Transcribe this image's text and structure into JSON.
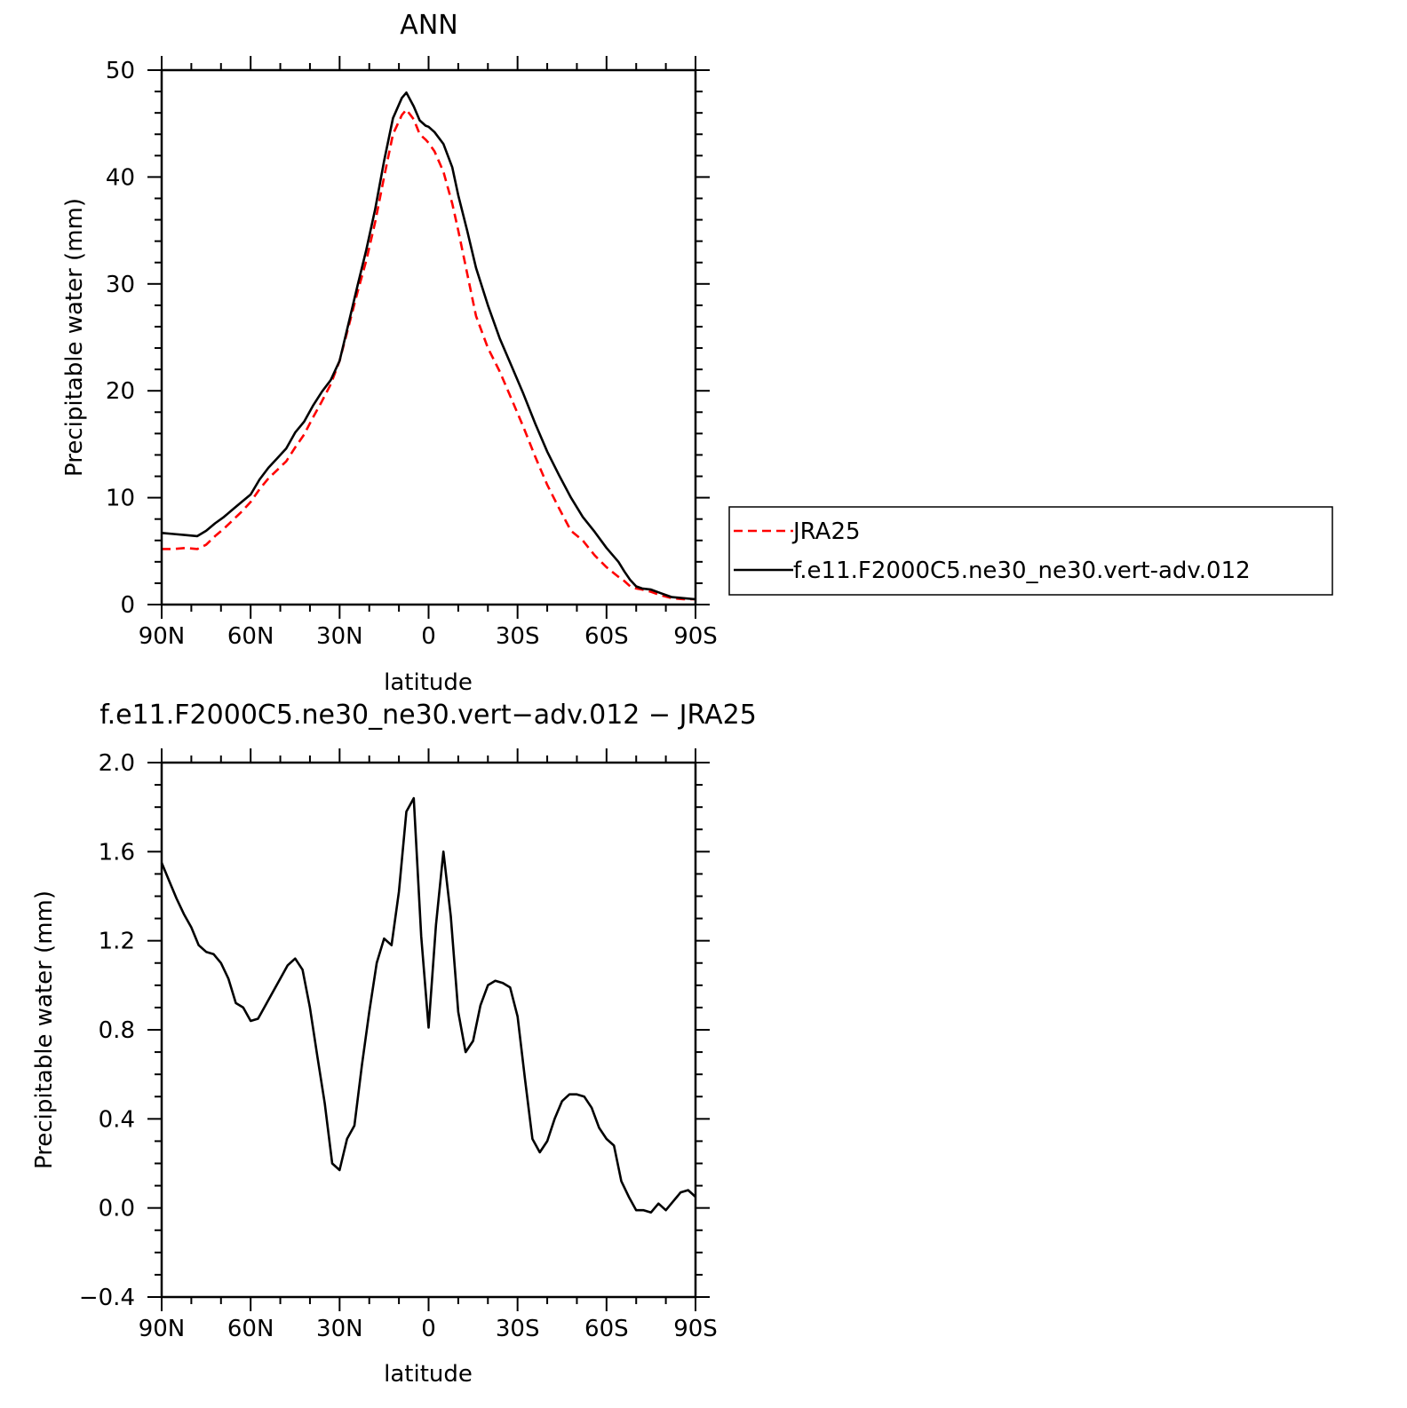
{
  "chart_data": [
    {
      "type": "line",
      "title": "ANN",
      "xlabel": "latitude",
      "ylabel": "Precipitable water (mm)",
      "xlim": [
        90,
        -90
      ],
      "ylim": [
        0,
        50
      ],
      "x_ticks": [
        90,
        60,
        30,
        0,
        -30,
        -60,
        -90
      ],
      "x_tick_labels": [
        "90N",
        "60N",
        "30N",
        "0",
        "30S",
        "60S",
        "90S"
      ],
      "y_ticks": [
        0,
        10,
        20,
        30,
        40,
        50
      ],
      "y_tick_labels": [
        "0",
        "10",
        "20",
        "30",
        "40",
        "50"
      ],
      "legend_position": "right",
      "series": [
        {
          "name": "JRA25",
          "color": "#ff0000",
          "dash": "dashed",
          "x": [
            90,
            86,
            82,
            78,
            75,
            72,
            69,
            66,
            63,
            60,
            57,
            54,
            51,
            48,
            45,
            42,
            39,
            36,
            33,
            30,
            27,
            24,
            21,
            18,
            15,
            12,
            9,
            7.5,
            5,
            3,
            1,
            0,
            -2,
            -5,
            -8,
            -10,
            -13,
            -16,
            -20,
            -24,
            -28,
            -32,
            -36,
            -40,
            -44,
            -48,
            -52,
            -56,
            -60,
            -64,
            -66,
            -68,
            -70,
            -72,
            -75,
            -78,
            -82,
            -86,
            -90
          ],
          "y": [
            5.2,
            5.2,
            5.3,
            5.2,
            5.6,
            6.4,
            7.1,
            7.9,
            8.7,
            9.6,
            10.8,
            11.8,
            12.6,
            13.4,
            14.7,
            15.9,
            17.5,
            19.0,
            20.6,
            22.8,
            26.0,
            29.2,
            32.2,
            35.8,
            40.0,
            44.0,
            45.8,
            46.3,
            45.4,
            44.0,
            43.5,
            43.2,
            42.4,
            40.5,
            37.5,
            35.0,
            31.0,
            27.0,
            24.0,
            21.8,
            19.2,
            16.6,
            13.8,
            11.2,
            9.0,
            6.9,
            6.0,
            4.6,
            3.5,
            2.6,
            2.2,
            1.7,
            1.5,
            1.4,
            1.2,
            0.9,
            0.6,
            0.5,
            0.5
          ]
        },
        {
          "name": "f.e11.F2000C5.ne30_ne30.vert-adv.012",
          "color": "#000000",
          "dash": "solid",
          "x": [
            90,
            86,
            82,
            78,
            75,
            72,
            69,
            66,
            63,
            60,
            57,
            54,
            51,
            48,
            45,
            42,
            39,
            36,
            33,
            30,
            27,
            24,
            21,
            18,
            15,
            12,
            9,
            7.5,
            5,
            3,
            1,
            0,
            -2,
            -5,
            -8,
            -10,
            -13,
            -16,
            -20,
            -24,
            -28,
            -32,
            -36,
            -40,
            -44,
            -48,
            -52,
            -56,
            -60,
            -64,
            -66,
            -68,
            -70,
            -72,
            -75,
            -78,
            -82,
            -86,
            -90
          ],
          "y": [
            6.7,
            6.6,
            6.5,
            6.4,
            6.9,
            7.6,
            8.2,
            8.9,
            9.6,
            10.3,
            11.7,
            12.8,
            13.7,
            14.6,
            16.1,
            17.1,
            18.6,
            19.9,
            21.0,
            22.8,
            26.3,
            29.8,
            33.2,
            37.0,
            41.5,
            45.5,
            47.4,
            47.9,
            46.6,
            45.3,
            44.8,
            44.7,
            44.2,
            43.1,
            40.9,
            38.3,
            35.0,
            31.5,
            28.0,
            24.9,
            22.3,
            19.7,
            16.9,
            14.3,
            12.1,
            10.0,
            8.2,
            6.8,
            5.3,
            4.0,
            3.1,
            2.3,
            1.7,
            1.5,
            1.4,
            1.1,
            0.7,
            0.6,
            0.5
          ]
        }
      ]
    },
    {
      "type": "line",
      "title": "f.e11.F2000C5.ne30_ne30.vert−adv.012 − JRA25",
      "xlabel": "latitude",
      "ylabel": "Precipitable water (mm)",
      "xlim": [
        90,
        -90
      ],
      "ylim": [
        -0.4,
        2.0
      ],
      "x_ticks": [
        90,
        60,
        30,
        0,
        -30,
        -60,
        -90
      ],
      "x_tick_labels": [
        "90N",
        "60N",
        "30N",
        "0",
        "30S",
        "60S",
        "90S"
      ],
      "y_ticks": [
        -0.4,
        0.0,
        0.4,
        0.8,
        1.2,
        1.6,
        2.0
      ],
      "y_tick_labels": [
        "−0.4",
        "0.0",
        "0.4",
        "0.8",
        "1.2",
        "1.6",
        "2.0"
      ],
      "series": [
        {
          "color": "#000000",
          "dash": "solid",
          "x": [
            90,
            87.5,
            85,
            82.5,
            80,
            77.5,
            75,
            72.5,
            70,
            67.5,
            65,
            62.5,
            60,
            57.5,
            55,
            52.5,
            50,
            47.5,
            45,
            42.5,
            40,
            37.5,
            35,
            32.5,
            30,
            27.5,
            25,
            22.5,
            20,
            17.5,
            15,
            12.5,
            10,
            7.5,
            5,
            2.5,
            0,
            -2.5,
            -5,
            -7.5,
            -10,
            -12.5,
            -15,
            -17.5,
            -20,
            -22.5,
            -25,
            -27.5,
            -30,
            -32.5,
            -35,
            -37.5,
            -40,
            -42.5,
            -45,
            -47.5,
            -50,
            -52.5,
            -55,
            -57.5,
            -60,
            -62.5,
            -65,
            -67.5,
            -70,
            -72.5,
            -75,
            -77.5,
            -80,
            -82.5,
            -85,
            -87.5,
            -90
          ],
          "y": [
            1.55,
            1.47,
            1.39,
            1.32,
            1.26,
            1.18,
            1.15,
            1.14,
            1.1,
            1.03,
            0.92,
            0.9,
            0.84,
            0.85,
            0.91,
            0.97,
            1.03,
            1.09,
            1.12,
            1.07,
            0.9,
            0.68,
            0.47,
            0.2,
            0.17,
            0.31,
            0.37,
            0.64,
            0.88,
            1.1,
            1.21,
            1.18,
            1.42,
            1.78,
            1.84,
            1.22,
            0.81,
            1.27,
            1.6,
            1.31,
            0.88,
            0.7,
            0.75,
            0.91,
            1.0,
            1.02,
            1.01,
            0.99,
            0.86,
            0.58,
            0.31,
            0.25,
            0.3,
            0.4,
            0.48,
            0.51,
            0.51,
            0.5,
            0.45,
            0.36,
            0.31,
            0.28,
            0.12,
            0.05,
            -0.01,
            -0.01,
            -0.02,
            0.02,
            -0.01,
            0.03,
            0.07,
            0.08,
            0.05
          ]
        }
      ]
    }
  ]
}
